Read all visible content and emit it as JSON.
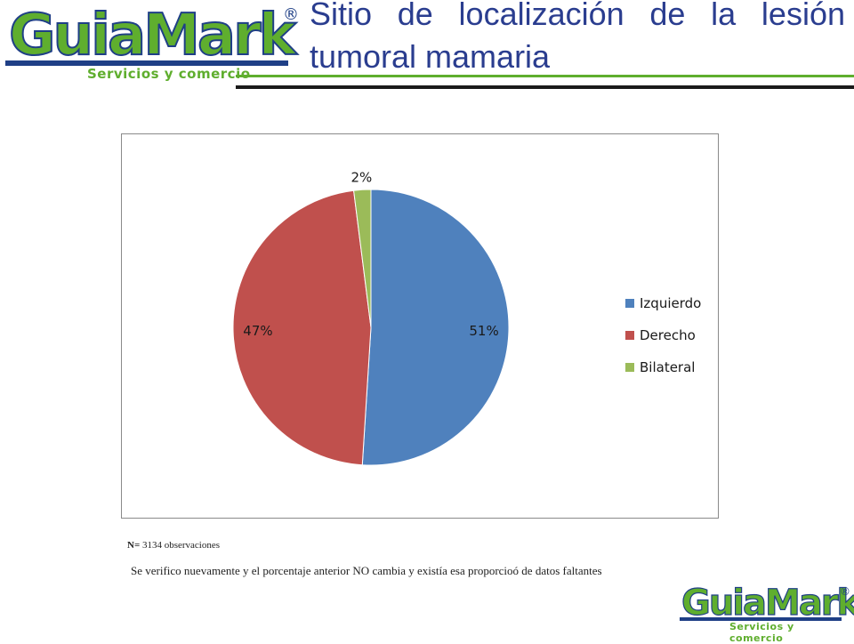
{
  "header": {
    "logo_text_main": "GuiaMark",
    "logo_registered": "®",
    "logo_subtitle": "Servicios y comercio",
    "title_line1": "Sitio de localización de la lesión",
    "title_line2": "tumoral mamaria"
  },
  "chart_data": {
    "type": "pie",
    "categories": [
      "Izquierdo",
      "Derecho",
      "Bilateral"
    ],
    "values": [
      51,
      47,
      2
    ],
    "data_labels": [
      "51%",
      "47%",
      "2%"
    ],
    "colors": [
      "#4f81bd",
      "#c0504d",
      "#9bbb59"
    ],
    "legend_position": "right",
    "start_angle": "12 o'clock",
    "direction": "clockwise"
  },
  "notes": {
    "n_label": "N=",
    "n_text": "3134 observaciones",
    "footnote": "Se verifico nuevamente y el porcentaje anterior NO cambia y existía esa proporcioó de datos faltantes"
  },
  "footer": {
    "logo_text_main": "GuiaMark",
    "logo_registered": "®",
    "logo_subtitle": "Servicios y comercio"
  }
}
